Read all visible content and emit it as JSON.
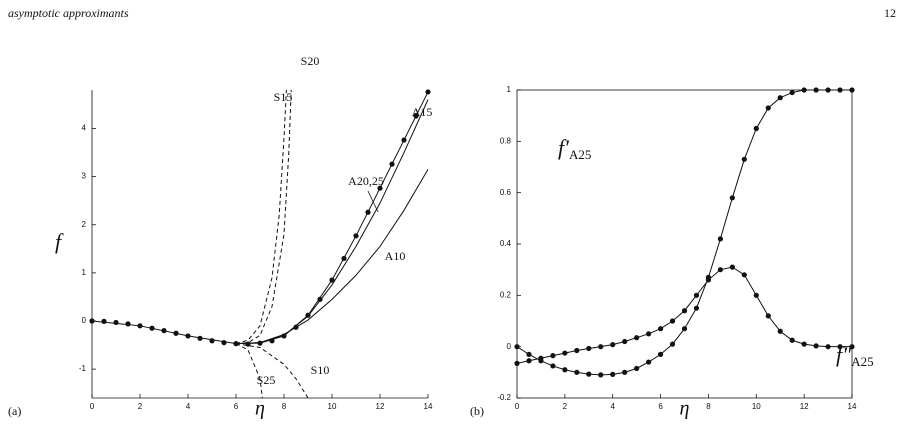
{
  "header": {
    "title": "asymptotic approximants",
    "page": "12"
  },
  "chart_data": [
    {
      "type": "line",
      "panel": "(a)",
      "ylabel": "f",
      "xlabel": "η",
      "frame": "open",
      "xlim": [
        0,
        14
      ],
      "ylim": [
        -1.6,
        4.8
      ],
      "xticks": [
        0,
        2,
        4,
        6,
        8,
        10,
        12,
        14
      ],
      "yticks": [
        -1,
        0,
        1,
        2,
        3,
        4
      ],
      "color": "#111111",
      "marker": "dot",
      "x": [
        0,
        0.5,
        1,
        1.5,
        2,
        2.5,
        3,
        3.5,
        4,
        4.5,
        5,
        5.5,
        6,
        6.5,
        7,
        7.5,
        8,
        8.5,
        9,
        9.5,
        10,
        10.5,
        11,
        11.5,
        12,
        12.5,
        13,
        13.5,
        14
      ],
      "values": [
        0,
        -0.008,
        -0.03,
        -0.06,
        -0.1,
        -0.15,
        -0.2,
        -0.255,
        -0.31,
        -0.36,
        -0.41,
        -0.45,
        -0.47,
        -0.48,
        -0.46,
        -0.41,
        -0.31,
        -0.13,
        0.12,
        0.45,
        0.85,
        1.3,
        1.77,
        2.26,
        2.76,
        3.26,
        3.76,
        4.26,
        4.76
      ],
      "series": [
        {
          "name": "A10",
          "dash": false,
          "x": [
            6,
            7,
            8,
            9,
            10,
            11,
            12,
            13,
            14
          ],
          "values": [
            -0.47,
            -0.45,
            -0.28,
            0.02,
            0.45,
            0.95,
            1.55,
            2.3,
            3.15
          ]
        },
        {
          "name": "A15",
          "dash": false,
          "x": [
            6,
            7,
            8,
            9,
            10,
            11,
            12,
            13,
            14
          ],
          "values": [
            -0.47,
            -0.45,
            -0.3,
            0.1,
            0.75,
            1.55,
            2.45,
            3.5,
            4.6
          ]
        },
        {
          "name": "A20,25",
          "dash": false,
          "x": [
            0,
            2,
            4,
            6,
            7,
            8,
            9,
            10,
            11,
            12,
            13,
            14
          ],
          "values": [
            0,
            -0.1,
            -0.31,
            -0.47,
            -0.46,
            -0.31,
            0.12,
            0.85,
            1.77,
            2.76,
            3.76,
            4.76
          ]
        },
        {
          "name": "S15",
          "dash": true,
          "x": [
            6,
            6.5,
            7,
            7.5,
            7.8,
            8.0,
            8.1
          ],
          "values": [
            -0.47,
            -0.4,
            -0.1,
            0.9,
            2.2,
            3.8,
            4.8
          ]
        },
        {
          "name": "S20",
          "dash": true,
          "x": [
            6,
            6.5,
            7,
            7.5,
            8,
            8.2,
            8.3
          ],
          "values": [
            -0.47,
            -0.45,
            -0.3,
            0.3,
            1.8,
            3.5,
            4.8
          ]
        },
        {
          "name": "S10",
          "dash": true,
          "x": [
            6,
            7,
            8,
            8.5,
            9
          ],
          "values": [
            -0.47,
            -0.55,
            -0.9,
            -1.2,
            -1.6
          ]
        },
        {
          "name": "S25",
          "dash": true,
          "x": [
            6,
            6.5,
            7,
            7.1
          ],
          "values": [
            -0.47,
            -0.6,
            -1.2,
            -1.6
          ]
        }
      ]
    },
    {
      "type": "line",
      "panel": "(b)",
      "xlabel": "η",
      "frame": "box",
      "xlim": [
        0,
        14
      ],
      "ylim": [
        -0.2,
        1
      ],
      "xticks": [
        0,
        2,
        4,
        6,
        8,
        10,
        12,
        14
      ],
      "yticks": [
        -0.2,
        0,
        0.2,
        0.4,
        0.6,
        0.8,
        1
      ],
      "color": "#111111",
      "marker": "dot",
      "x": [
        0,
        0.5,
        1,
        1.5,
        2,
        2.5,
        3,
        3.5,
        4,
        4.5,
        5,
        5.5,
        6,
        6.5,
        7,
        7.5,
        8,
        8.5,
        9,
        9.5,
        10,
        10.5,
        11,
        11.5,
        12,
        12.5,
        13,
        13.5,
        14
      ],
      "series": [
        {
          "label": "f′",
          "label_sub": "A25",
          "values": [
            0,
            -0.03,
            -0.055,
            -0.075,
            -0.09,
            -0.1,
            -0.107,
            -0.11,
            -0.108,
            -0.1,
            -0.085,
            -0.06,
            -0.03,
            0.01,
            0.07,
            0.15,
            0.27,
            0.42,
            0.58,
            0.73,
            0.85,
            0.93,
            0.97,
            0.99,
            1.0,
            1,
            1,
            1,
            1
          ]
        },
        {
          "label": "f″",
          "label_sub": "A25",
          "values": [
            -0.065,
            -0.055,
            -0.045,
            -0.035,
            -0.025,
            -0.015,
            -0.007,
            0.0,
            0.008,
            0.02,
            0.035,
            0.05,
            0.07,
            0.1,
            0.14,
            0.2,
            0.26,
            0.3,
            0.31,
            0.28,
            0.2,
            0.12,
            0.06,
            0.025,
            0.01,
            0.003,
            0,
            0,
            0
          ]
        }
      ]
    }
  ]
}
